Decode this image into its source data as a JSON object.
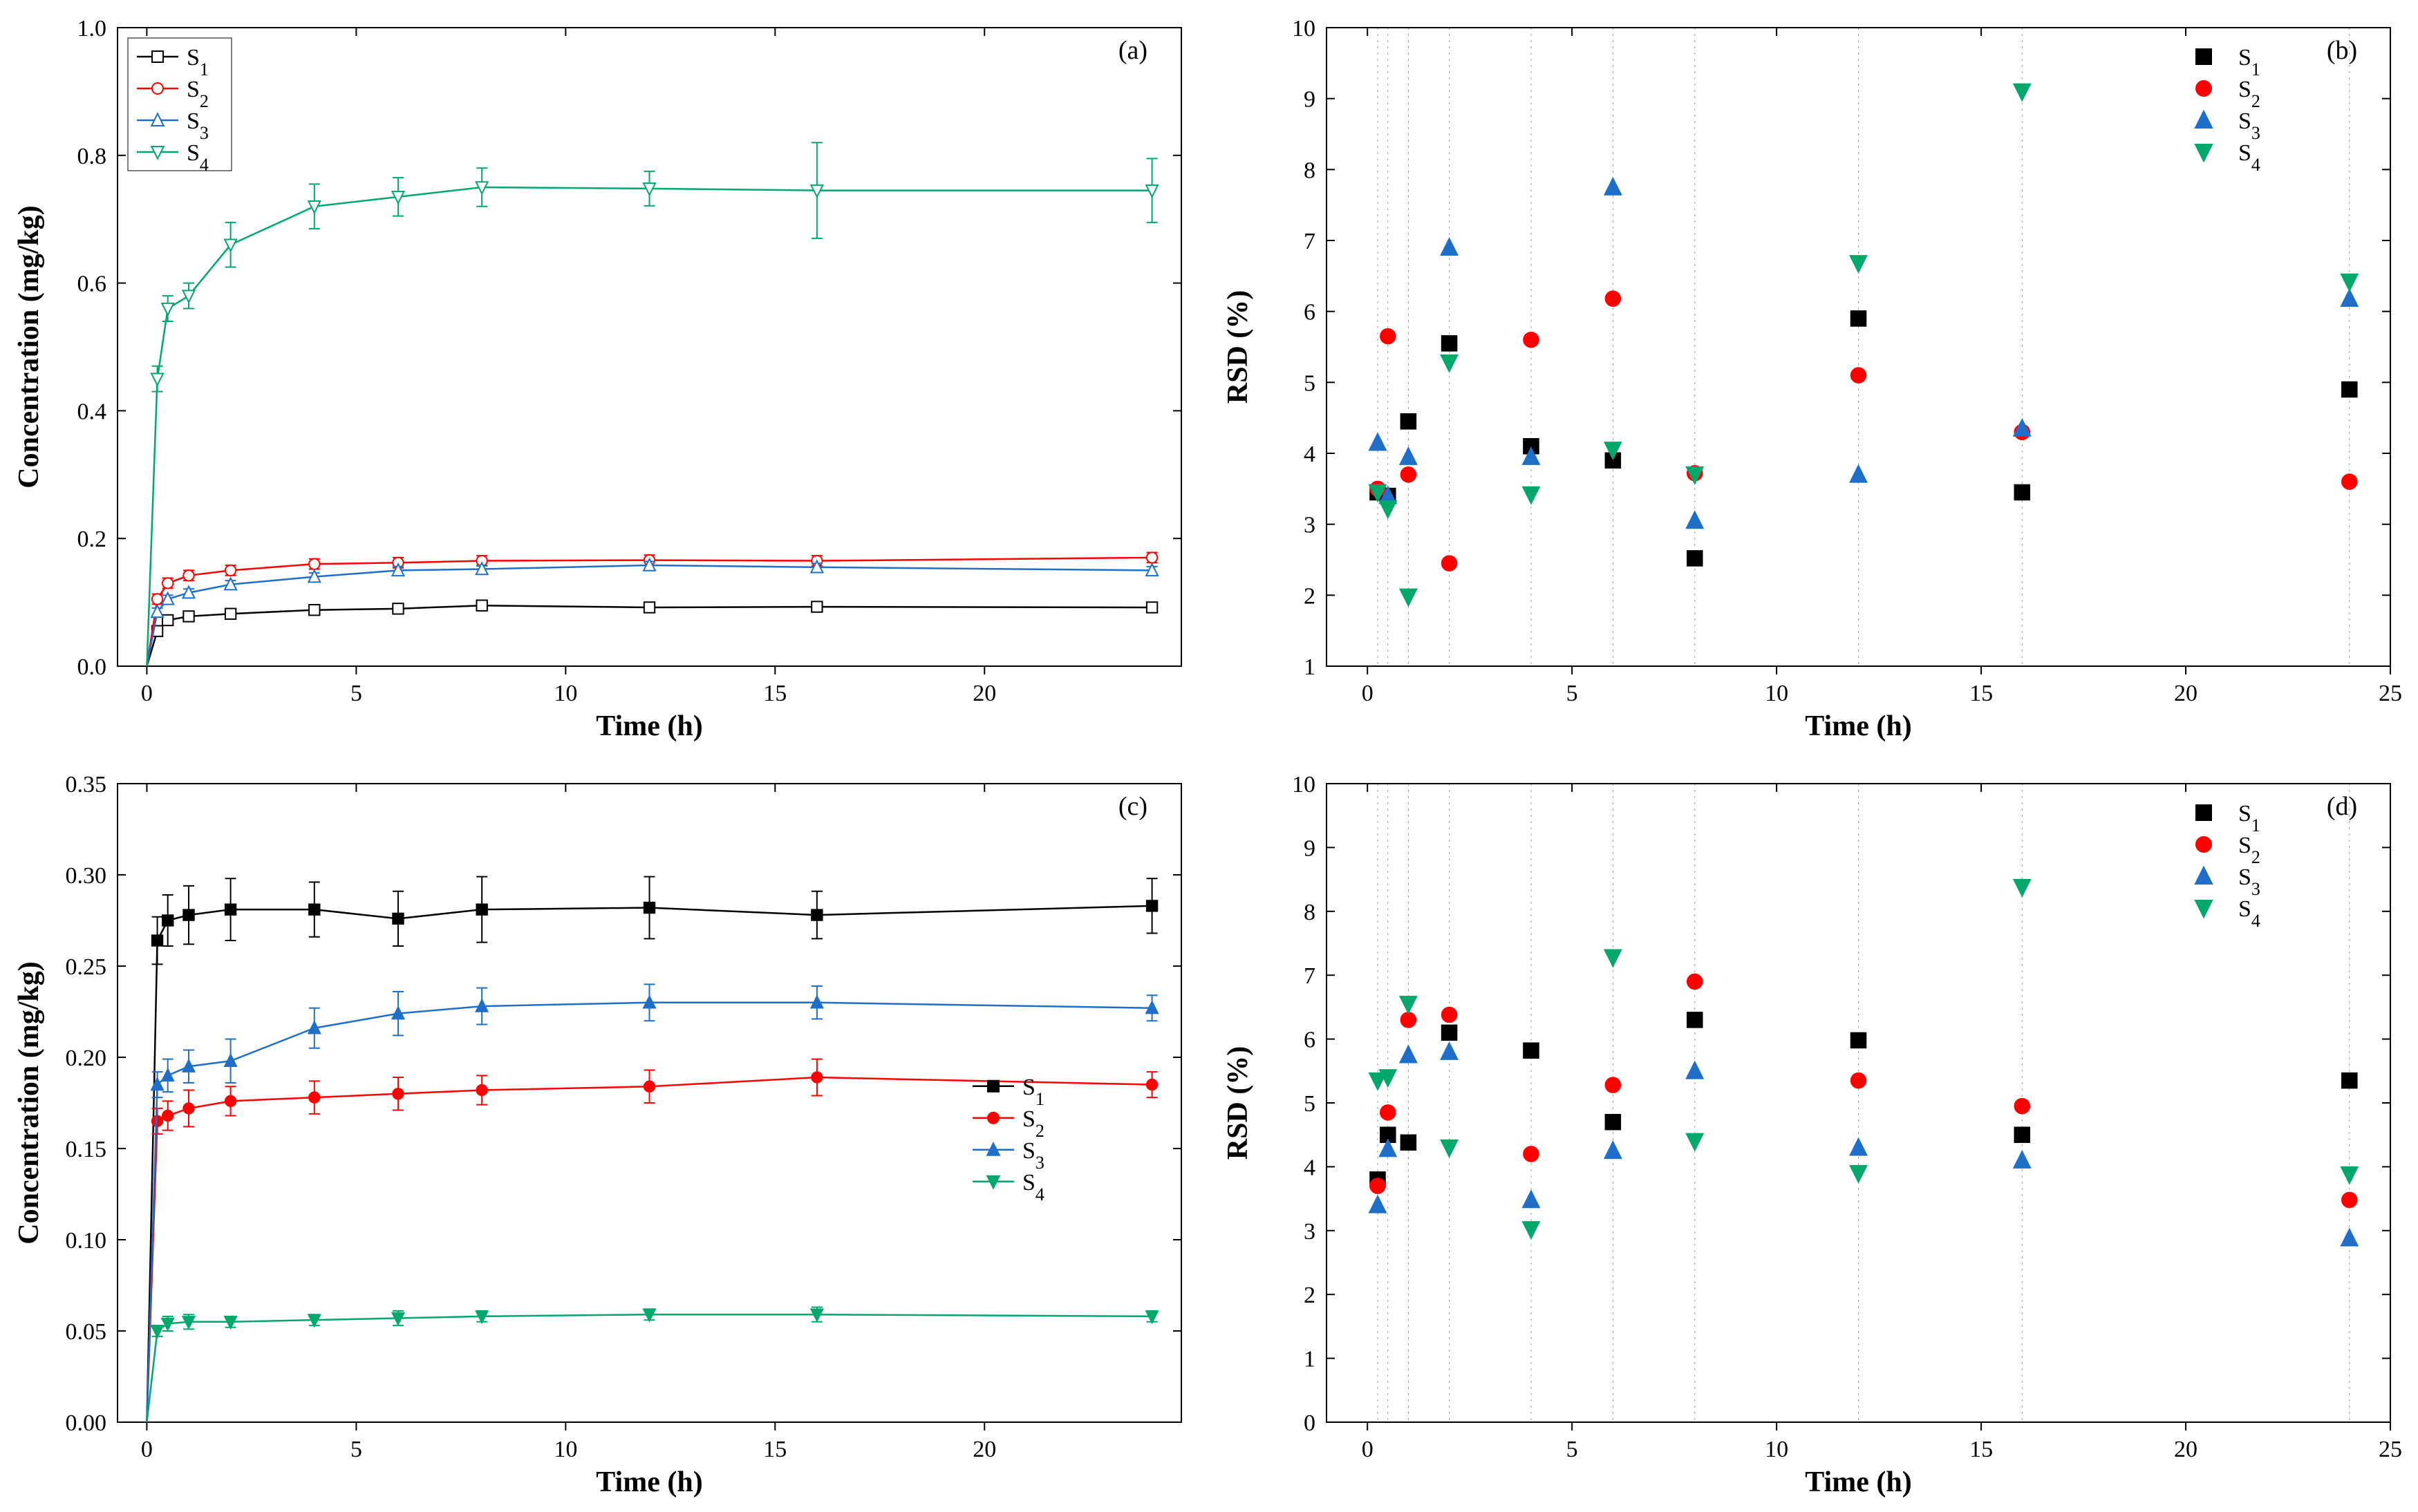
{
  "global": {
    "background_color": "#ffffff",
    "font_family": "Times New Roman",
    "axis_label_fontsize": 42,
    "tick_fontsize": 34,
    "legend_fontsize": 34,
    "panel_label_fontsize": 38
  },
  "series_meta": {
    "S1": {
      "label": "S",
      "sub": "1",
      "color": "#000000",
      "marker_a": "square-open",
      "marker_b": "square-filled",
      "marker_c": "square-filled",
      "marker_d": "square-filled"
    },
    "S2": {
      "label": "S",
      "sub": "2",
      "color": "#ff0000",
      "marker_a": "circle-open",
      "marker_b": "circle-filled",
      "marker_c": "circle-filled",
      "marker_d": "circle-filled"
    },
    "S3": {
      "label": "S",
      "sub": "3",
      "color": "#1f6fc8",
      "marker_a": "triangle-up-open",
      "marker_b": "triangle-up-filled",
      "marker_c": "triangle-up-filled",
      "marker_d": "triangle-up-filled"
    },
    "S4": {
      "label": "S",
      "sub": "4",
      "color": "#00a86b",
      "marker_a": "triangle-down-open",
      "marker_b": "triangle-down-filled",
      "marker_c": "triangle-down-filled",
      "marker_d": "triangle-down-filled"
    }
  },
  "x_times": [
    0.25,
    0.5,
    1,
    2,
    4,
    6,
    8,
    12,
    16,
    24
  ],
  "panel_a": {
    "label": "(a)",
    "type": "line-errorbar",
    "xlabel": "Time (h)",
    "ylabel": "Concentration (mg/kg)",
    "xlim": [
      -0.7,
      24.7
    ],
    "ylim": [
      0.0,
      1.0
    ],
    "xticks": [
      0,
      5,
      10,
      15,
      20
    ],
    "yticks": [
      0.0,
      0.2,
      0.4,
      0.6,
      0.8,
      1.0
    ],
    "ytick_labels": [
      "0.0",
      "0.2",
      "0.4",
      "0.6",
      "0.8",
      "1.0"
    ],
    "legend_pos": "top-left",
    "legend_order": [
      "S1",
      "S2",
      "S3",
      "S4"
    ],
    "marker_size": 10,
    "line_width": 2.5,
    "error_cap": 8,
    "data": {
      "S1": {
        "y": [
          0.055,
          0.072,
          0.078,
          0.082,
          0.088,
          0.09,
          0.095,
          0.092,
          0.093,
          0.092
        ],
        "err": [
          0.004,
          0.004,
          0.004,
          0.004,
          0.004,
          0.004,
          0.004,
          0.004,
          0.004,
          0.004
        ]
      },
      "S2": {
        "y": [
          0.105,
          0.13,
          0.142,
          0.15,
          0.16,
          0.162,
          0.165,
          0.166,
          0.165,
          0.17
        ],
        "err": [
          0.008,
          0.008,
          0.008,
          0.008,
          0.008,
          0.008,
          0.008,
          0.008,
          0.008,
          0.008
        ]
      },
      "S3": {
        "y": [
          0.085,
          0.105,
          0.115,
          0.128,
          0.14,
          0.15,
          0.152,
          0.158,
          0.155,
          0.15
        ],
        "err": [
          0.006,
          0.006,
          0.006,
          0.006,
          0.006,
          0.006,
          0.006,
          0.006,
          0.006,
          0.006
        ]
      },
      "S4": {
        "y": [
          0.45,
          0.56,
          0.58,
          0.66,
          0.72,
          0.735,
          0.75,
          0.748,
          0.745,
          0.745
        ],
        "err": [
          0.02,
          0.02,
          0.02,
          0.035,
          0.035,
          0.03,
          0.03,
          0.027,
          0.075,
          0.05
        ]
      }
    }
  },
  "panel_b": {
    "label": "(b)",
    "type": "scatter",
    "xlabel": "Time (h)",
    "ylabel": "RSD (%)",
    "xlim": [
      -1.0,
      25.0
    ],
    "ylim": [
      1,
      10
    ],
    "xticks": [
      0,
      5,
      10,
      15,
      20,
      25
    ],
    "yticks": [
      1,
      2,
      3,
      4,
      5,
      6,
      7,
      8,
      9,
      10
    ],
    "legend_pos": "top-right",
    "legend_order": [
      "S1",
      "S2",
      "S3",
      "S4"
    ],
    "marker_size": 14,
    "vgrid_x": [
      0.25,
      0.5,
      1,
      2,
      4,
      6,
      8,
      12,
      16,
      24
    ],
    "data": {
      "S1": {
        "y": [
          3.45,
          3.4,
          4.45,
          5.55,
          4.1,
          3.9,
          2.52,
          5.9,
          3.45,
          4.9
        ]
      },
      "S2": {
        "y": [
          3.5,
          5.65,
          3.7,
          2.45,
          5.6,
          6.18,
          3.72,
          5.1,
          4.3,
          3.6
        ]
      },
      "S3": {
        "y": [
          4.15,
          3.4,
          3.95,
          6.9,
          3.95,
          7.75,
          3.05,
          3.7,
          4.35,
          6.18
        ]
      },
      "S4": {
        "y": [
          3.45,
          3.22,
          1.98,
          5.28,
          3.42,
          4.05,
          3.7,
          6.68,
          9.1,
          6.42
        ]
      }
    }
  },
  "panel_c": {
    "label": "(c)",
    "type": "line-errorbar",
    "xlabel": "Time (h)",
    "ylabel": "Concentration (mg/kg)",
    "xlim": [
      -0.7,
      24.7
    ],
    "ylim": [
      0.0,
      0.35
    ],
    "xticks": [
      0,
      5,
      10,
      15,
      20
    ],
    "yticks": [
      0.0,
      0.05,
      0.1,
      0.15,
      0.2,
      0.25,
      0.3,
      0.35
    ],
    "ytick_labels": [
      "0.00",
      "0.05",
      "0.10",
      "0.15",
      "0.20",
      "0.25",
      "0.30",
      "0.35"
    ],
    "legend_pos": "right-mid",
    "legend_order": [
      "S1",
      "S2",
      "S3",
      "S4"
    ],
    "marker_size": 10,
    "line_width": 2.5,
    "error_cap": 8,
    "data": {
      "S1": {
        "y": [
          0.264,
          0.275,
          0.278,
          0.281,
          0.281,
          0.276,
          0.281,
          0.282,
          0.278,
          0.283
        ],
        "err": [
          0.013,
          0.014,
          0.016,
          0.017,
          0.015,
          0.015,
          0.018,
          0.017,
          0.013,
          0.015
        ]
      },
      "S2": {
        "y": [
          0.165,
          0.168,
          0.172,
          0.176,
          0.178,
          0.18,
          0.182,
          0.184,
          0.189,
          0.185
        ],
        "err": [
          0.007,
          0.008,
          0.01,
          0.008,
          0.009,
          0.009,
          0.008,
          0.009,
          0.01,
          0.007
        ]
      },
      "S3": {
        "y": [
          0.185,
          0.19,
          0.195,
          0.198,
          0.216,
          0.224,
          0.228,
          0.23,
          0.23,
          0.227
        ],
        "err": [
          0.007,
          0.009,
          0.009,
          0.012,
          0.011,
          0.012,
          0.01,
          0.01,
          0.009,
          0.007
        ]
      },
      "S4": {
        "y": [
          0.05,
          0.054,
          0.055,
          0.055,
          0.056,
          0.057,
          0.058,
          0.059,
          0.059,
          0.058
        ],
        "err": [
          0.003,
          0.004,
          0.004,
          0.003,
          0.003,
          0.004,
          0.003,
          0.003,
          0.004,
          0.003
        ]
      }
    }
  },
  "panel_d": {
    "label": "(d)",
    "type": "scatter",
    "xlabel": "Time (h)",
    "ylabel": "RSD (%)",
    "xlim": [
      -1.0,
      25.0
    ],
    "ylim": [
      0,
      10
    ],
    "xticks": [
      0,
      5,
      10,
      15,
      20,
      25
    ],
    "yticks": [
      0,
      1,
      2,
      3,
      4,
      5,
      6,
      7,
      8,
      9,
      10
    ],
    "legend_pos": "top-right",
    "legend_order": [
      "S1",
      "S2",
      "S3",
      "S4"
    ],
    "marker_size": 14,
    "vgrid_x": [
      0.25,
      0.5,
      1,
      2,
      4,
      6,
      8,
      12,
      16,
      24
    ],
    "data": {
      "S1": {
        "y": [
          3.8,
          4.5,
          4.38,
          6.1,
          5.82,
          4.7,
          6.3,
          5.98,
          4.5,
          5.35
        ]
      },
      "S2": {
        "y": [
          3.7,
          4.85,
          6.3,
          6.38,
          4.2,
          5.28,
          6.9,
          5.35,
          4.95,
          3.48
        ]
      },
      "S3": {
        "y": [
          3.4,
          4.28,
          5.75,
          5.8,
          3.48,
          4.25,
          5.5,
          4.3,
          4.1,
          2.88
        ]
      },
      "S4": {
        "y": [
          5.35,
          5.4,
          6.55,
          4.3,
          3.02,
          7.28,
          4.4,
          3.9,
          8.38,
          3.88
        ]
      }
    }
  }
}
